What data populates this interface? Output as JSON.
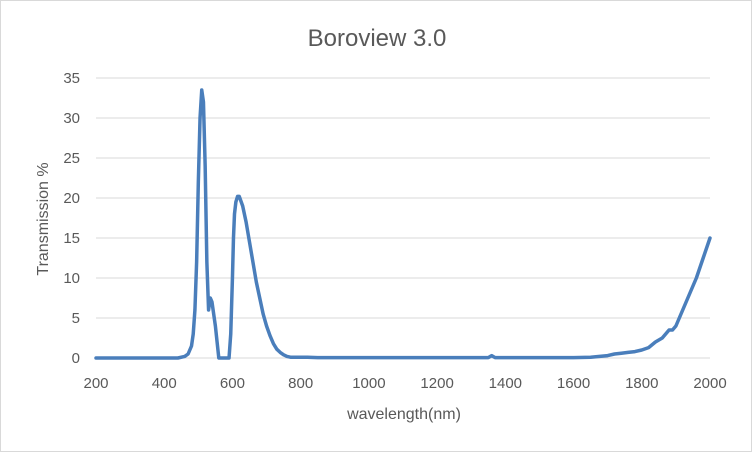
{
  "chart_data": {
    "type": "line",
    "title": "Boroview 3.0",
    "xlabel": "wavelength(nm)",
    "ylabel": "Transmission %",
    "xlim": [
      200,
      2000
    ],
    "ylim": [
      0,
      35
    ],
    "xticks": [
      200,
      400,
      600,
      800,
      1000,
      1200,
      1400,
      1600,
      1800,
      2000
    ],
    "yticks": [
      0,
      5,
      10,
      15,
      20,
      25,
      30,
      35
    ],
    "grid": "horizontal",
    "legend": "none",
    "line_color": "#4a7ebb",
    "grid_color": "#d9d9d9",
    "series": [
      {
        "x": [
          200,
          300,
          400,
          440,
          460,
          470,
          480,
          485,
          490,
          495,
          500,
          505,
          510,
          515,
          520,
          525,
          530,
          535,
          540,
          545,
          550,
          555,
          560,
          565,
          570,
          575,
          580,
          590,
          595,
          600,
          603,
          606,
          610,
          615,
          620,
          630,
          640,
          650,
          660,
          670,
          680,
          690,
          700,
          710,
          720,
          730,
          740,
          750,
          760,
          770,
          780,
          790,
          800,
          820,
          850,
          900,
          1000,
          1100,
          1200,
          1300,
          1350,
          1360,
          1370,
          1400,
          1500,
          1600,
          1650,
          1700,
          1720,
          1740,
          1760,
          1780,
          1800,
          1820,
          1840,
          1860,
          1870,
          1880,
          1890,
          1900,
          1910,
          1920,
          1940,
          1960,
          1980,
          2000
        ],
        "y": [
          0,
          0,
          0,
          0,
          0.2,
          0.5,
          1.5,
          3,
          6,
          12,
          22,
          30,
          33.5,
          32,
          24,
          12,
          6,
          7.5,
          7,
          5.5,
          4,
          2,
          0,
          0,
          0,
          0,
          0,
          0,
          3,
          10,
          15,
          18,
          19.5,
          20.2,
          20.2,
          19,
          17,
          14.5,
          12,
          9.5,
          7.5,
          5.5,
          4,
          2.8,
          1.8,
          1.1,
          0.7,
          0.4,
          0.2,
          0.1,
          0.1,
          0.1,
          0.1,
          0.1,
          0.05,
          0.05,
          0.05,
          0.05,
          0.05,
          0.05,
          0.05,
          0.3,
          0.05,
          0.05,
          0.05,
          0.05,
          0.1,
          0.3,
          0.5,
          0.6,
          0.7,
          0.8,
          1.0,
          1.3,
          2.0,
          2.5,
          3.0,
          3.5,
          3.5,
          4.0,
          5.0,
          6.0,
          8.0,
          10.0,
          12.5,
          15.0
        ]
      }
    ]
  }
}
